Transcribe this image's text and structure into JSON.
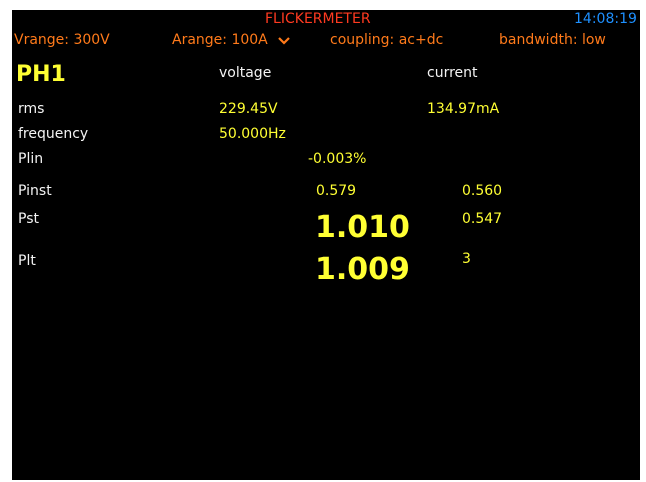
{
  "header": {
    "title": "FLICKERMETER",
    "time": "14:08:19",
    "vrange": "Vrange: 300V",
    "arange": "Arange: 100A",
    "coupling": "coupling: ac+dc",
    "bandwidth": "bandwidth: low"
  },
  "phase": "PH1",
  "columns": [
    "voltage",
    "current"
  ],
  "rows": [
    {
      "label": "rms",
      "voltage": "229.45V",
      "current": "134.97mA"
    },
    {
      "label": "frequency",
      "voltage": "50.000Hz"
    },
    {
      "label": "Plin",
      "value": "-0.003%"
    },
    {
      "label": "Pinst",
      "voltage": "0.579",
      "current": "0.560"
    },
    {
      "label": "Pst",
      "voltage": "1.010",
      "current": "0.547"
    },
    {
      "label": "Plt",
      "voltage": "1.009",
      "current": "3"
    }
  ]
}
